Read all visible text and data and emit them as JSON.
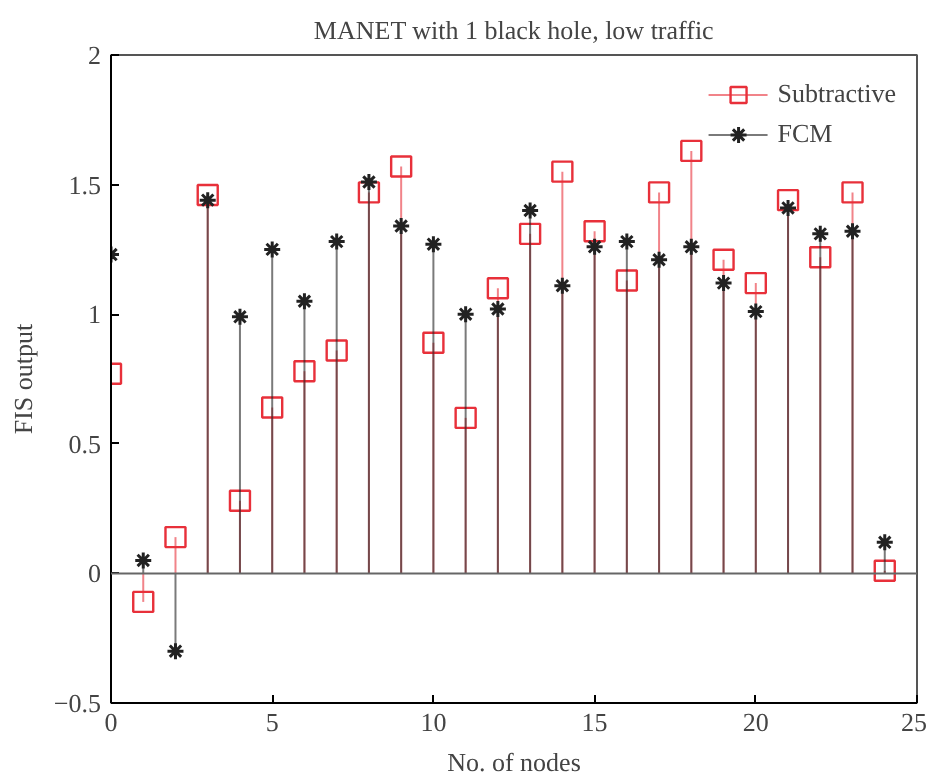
{
  "chart_data": {
    "type": "lollipop",
    "title": "MANET with 1 black hole, low traffic",
    "xlabel": "No. of nodes",
    "ylabel": "FIS output",
    "x": [
      0,
      1,
      2,
      3,
      4,
      5,
      6,
      7,
      8,
      9,
      10,
      11,
      12,
      13,
      14,
      15,
      16,
      17,
      18,
      19,
      20,
      21,
      22,
      23,
      24
    ],
    "series": [
      {
        "name": "Subtractive",
        "color": "#e8303a",
        "marker": "square",
        "values": [
          0.77,
          -0.11,
          0.14,
          1.46,
          0.28,
          0.64,
          0.78,
          0.86,
          1.47,
          1.57,
          0.89,
          0.6,
          1.1,
          1.31,
          1.55,
          1.32,
          1.13,
          1.47,
          1.63,
          1.21,
          1.12,
          1.44,
          1.22,
          1.47,
          0.01
        ]
      },
      {
        "name": "FCM",
        "color": "#222222",
        "marker": "cross",
        "values": [
          1.23,
          0.05,
          -0.3,
          1.44,
          0.99,
          1.25,
          1.05,
          1.28,
          1.51,
          1.34,
          1.27,
          1.0,
          1.02,
          1.4,
          1.11,
          1.26,
          1.28,
          1.21,
          1.26,
          1.12,
          1.01,
          1.41,
          1.31,
          1.32,
          0.12
        ]
      }
    ],
    "xlim": [
      0,
      25
    ],
    "ylim": [
      -0.5,
      2
    ],
    "xticks": [
      0,
      5,
      10,
      15,
      20,
      25
    ],
    "yticks": [
      -0.5,
      0,
      0.5,
      1,
      1.5,
      2
    ],
    "ref_lines": [
      {
        "axis": "y",
        "value": 0,
        "color": "#666666"
      }
    ],
    "grid": false,
    "legend": "top right"
  }
}
